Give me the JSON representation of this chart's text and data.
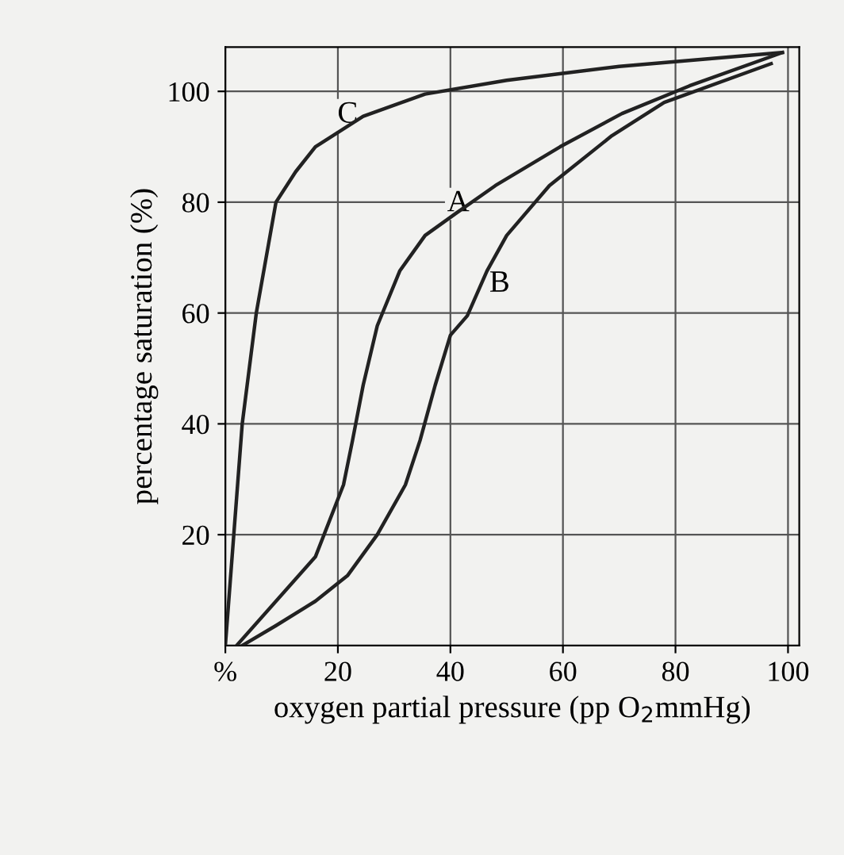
{
  "chart_data": {
    "type": "line",
    "xlabel": "oxygen partial pressure (pp O$_{2}$mmHg)",
    "ylabel": "percentage saturation (%)",
    "xlim": [
      0,
      102
    ],
    "ylim": [
      0,
      108
    ],
    "xticks": [
      {
        "value": 0,
        "label": "%"
      },
      20,
      40,
      60,
      80,
      100
    ],
    "yticks": [
      20,
      40,
      60,
      80,
      100
    ],
    "grid": true,
    "marker": "none",
    "line_style": "solid",
    "series": [
      {
        "color": "#222222",
        "x": [
          2,
          16,
          21,
          22.6,
          24.5,
          27,
          31,
          35.5,
          41,
          48,
          59.5,
          70.5,
          82.5,
          99
        ],
        "values": [
          0,
          16,
          29,
          37,
          47,
          57.7,
          67.6,
          74,
          78,
          83,
          90,
          96,
          101,
          107
        ]
      },
      {
        "color": "#222222",
        "x": [
          3,
          9,
          16,
          21.7,
          27,
          32,
          34.6,
          37.3,
          40,
          43,
          46.5,
          50,
          57.6,
          68.7,
          78,
          97
        ],
        "values": [
          0,
          3.6,
          8,
          12.6,
          20,
          29,
          37,
          47,
          56,
          59.5,
          67.6,
          74,
          83,
          92,
          98,
          105
        ]
      },
      {
        "color": "#222222",
        "x": [
          0,
          3,
          5.5,
          9,
          12.5,
          16,
          24.5,
          35.5,
          50,
          70,
          99
        ],
        "values": [
          0,
          40,
          60,
          80,
          85.5,
          90,
          95.5,
          99.5,
          102,
          104.5,
          107
        ]
      }
    ],
    "annotations": [
      {
        "text": "A",
        "x": 35.5,
        "y": 74
      },
      {
        "text": "B",
        "x": 43,
        "y": 59.5
      },
      {
        "text": "C",
        "x": 16,
        "y": 90
      }
    ]
  }
}
